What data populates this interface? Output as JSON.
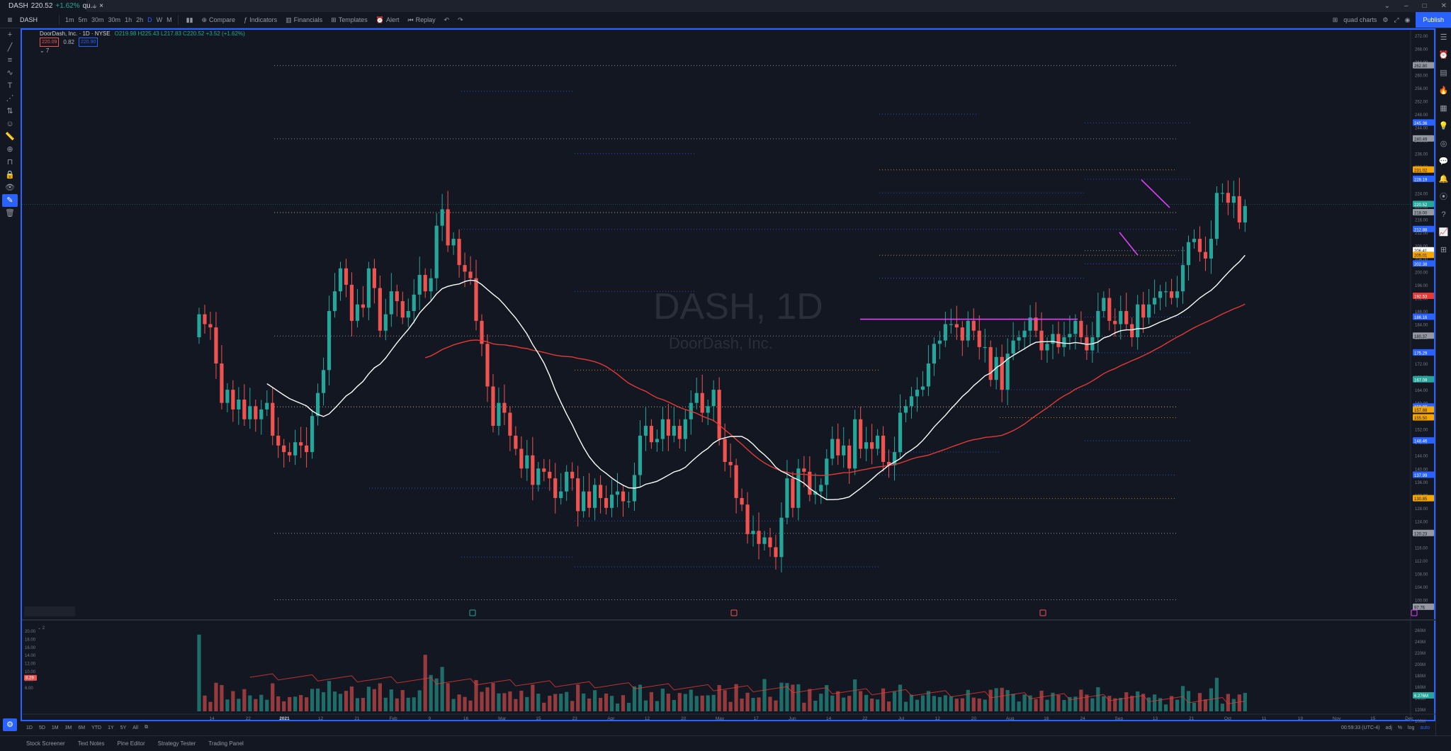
{
  "window": {
    "tab_label": "DASH",
    "tab_price": "220.52",
    "tab_change": "+1.62%",
    "tab_extra": "qu...",
    "new_tab": "+"
  },
  "toolbar": {
    "symbol": "DASH",
    "timeframes": [
      "1m",
      "5m",
      "30m",
      "30m",
      "1h",
      "2h",
      "D",
      "W",
      "M"
    ],
    "active_timeframe": "D",
    "compare": "Compare",
    "indicators": "Indicators",
    "financials": "Financials",
    "templates": "Templates",
    "alert": "Alert",
    "replay": "Replay",
    "layout_name": "quad charts",
    "publish": "Publish"
  },
  "legend": {
    "title": "DoorDash, Inc. · 1D · NYSE",
    "ohlc": "O219.98 H225.43 L217.83 C220.52 +3.52 (+1.62%)",
    "ma1": "220.09",
    "ma1_mid": "0.82",
    "ma2": "220.90",
    "collapse": "⌄ 7"
  },
  "watermark": {
    "symbol": "DASH, 1D",
    "name": "DoorDash, Inc."
  },
  "volume_legend": "⌄ 2",
  "bottom": {
    "ranges": [
      "1D",
      "5D",
      "1M",
      "3M",
      "6M",
      "YTD",
      "1Y",
      "5Y",
      "All"
    ],
    "time": "00:59:33 (UTC-4)",
    "adj": "adj",
    "pct": "%",
    "log": "log",
    "auto": "auto"
  },
  "panels": [
    "Stock Screener",
    "Text Notes",
    "Pine Editor",
    "Strategy Tester",
    "Trading Panel"
  ],
  "colors": {
    "up": "#26a69a",
    "down": "#ef5350",
    "ma_fast": "#ffffff",
    "ma_slow": "#e53935",
    "trend": "#e040fb",
    "accent": "#2962ff"
  },
  "chart_data": {
    "type": "candlestick",
    "price_axis": {
      "min": 96,
      "max": 272,
      "ticks": [
        272,
        268,
        264,
        260,
        256,
        252,
        248,
        244,
        240,
        236,
        232,
        228,
        224,
        220,
        216,
        212,
        208,
        204,
        200,
        196,
        192,
        188,
        184,
        180,
        176,
        172,
        168,
        164,
        160,
        156,
        152,
        148,
        144,
        140,
        136,
        132,
        128,
        124,
        120,
        116,
        112,
        108,
        104,
        100
      ]
    },
    "x_labels": [
      "14",
      "22",
      "2021",
      "12",
      "21",
      "Feb",
      "9",
      "16",
      "Mar",
      "15",
      "23",
      "Apr",
      "12",
      "20",
      "May",
      "17",
      "Jun",
      "14",
      "22",
      "Jul",
      "12",
      "20",
      "Aug",
      "16",
      "24",
      "Sep",
      "13",
      "21",
      "Oct",
      "11",
      "19",
      "Nov",
      "15",
      "Dec"
    ],
    "price_labels": [
      {
        "v": 262.8,
        "text": "262.80",
        "c": "#9598a1"
      },
      {
        "v": 245.36,
        "text": "245.36",
        "c": "#2962ff"
      },
      {
        "v": 240.49,
        "text": "240.49",
        "c": "#9598a1"
      },
      {
        "v": 231.02,
        "text": "231.02",
        "c": "#f7a600"
      },
      {
        "v": 228.19,
        "text": "228.19",
        "c": "#2962ff"
      },
      {
        "v": 220.52,
        "text": "220.52",
        "c": "#26a69a"
      },
      {
        "v": 218.0,
        "text": "218.00",
        "c": "#9598a1"
      },
      {
        "v": 212.88,
        "text": "212.88",
        "c": "#2962ff"
      },
      {
        "v": 206.41,
        "text": "206.41",
        "c": "#ffffff"
      },
      {
        "v": 205.01,
        "text": "205.01",
        "c": "#f7a600"
      },
      {
        "v": 202.38,
        "text": "202.38",
        "c": "#2962ff"
      },
      {
        "v": 192.53,
        "text": "192.53",
        "c": "#e53935"
      },
      {
        "v": 186.16,
        "text": "186.16",
        "c": "#2962ff"
      },
      {
        "v": 180.37,
        "text": "180.37",
        "c": "#9598a1"
      },
      {
        "v": 175.29,
        "text": "175.29",
        "c": "#2962ff"
      },
      {
        "v": 167.09,
        "text": "167.09",
        "c": "#26a69a"
      },
      {
        "v": 158.8,
        "text": "158.80",
        "c": "#2962ff"
      },
      {
        "v": 157.88,
        "text": "157.88",
        "c": "#f7a600"
      },
      {
        "v": 155.5,
        "text": "155.50",
        "c": "#f7a600"
      },
      {
        "v": 148.46,
        "text": "148.46",
        "c": "#2962ff"
      },
      {
        "v": 137.99,
        "text": "137.99",
        "c": "#2962ff"
      },
      {
        "v": 130.85,
        "text": "130.85",
        "c": "#f7a600"
      },
      {
        "v": 120.23,
        "text": "120.23",
        "c": "#9598a1"
      },
      {
        "v": 97.76,
        "text": "97.76",
        "c": "#9598a1"
      }
    ],
    "vol_axis": [
      "20.00",
      "18.00",
      "16.00",
      "14.00",
      "12.00",
      "10.00",
      "8.00",
      "6.00"
    ],
    "vol_axis_right": [
      "260M",
      "240M",
      "220M",
      "200M",
      "180M",
      "160M",
      "140M",
      "120M",
      "100M"
    ],
    "vol_label_left": "8.29",
    "vol_label_right": "6.276M",
    "closes": [
      187,
      184,
      183,
      172,
      160,
      164,
      158,
      161,
      155,
      159,
      155,
      158,
      160,
      150,
      147,
      145,
      144,
      148,
      147,
      145,
      156,
      163,
      170,
      188,
      194,
      201,
      196,
      185,
      190,
      189,
      201,
      195,
      182,
      187,
      194,
      191,
      186,
      188,
      193,
      199,
      194,
      198,
      214,
      219,
      208,
      210,
      202,
      200,
      198,
      185,
      178,
      165,
      153,
      160,
      157,
      150,
      146,
      140,
      144,
      135,
      140,
      139,
      137,
      131,
      133,
      139,
      137,
      127,
      133,
      128,
      135,
      131,
      128,
      132,
      133,
      130,
      130,
      138,
      150,
      153,
      148,
      149,
      155,
      150,
      153,
      149,
      155,
      160,
      163,
      157,
      159,
      164,
      149,
      142,
      141,
      131,
      129,
      120,
      121,
      117,
      119,
      116,
      113,
      125,
      137,
      128,
      140,
      139,
      132,
      133,
      135,
      143,
      149,
      144,
      147,
      140,
      155,
      146,
      148,
      146,
      150,
      142,
      141,
      145,
      157,
      159,
      162,
      164,
      165,
      172,
      178,
      179,
      184,
      184,
      183,
      179,
      185,
      182,
      177,
      177,
      167,
      174,
      164,
      175,
      179,
      180,
      182,
      186,
      182,
      176,
      178,
      181,
      177,
      180,
      181,
      185,
      180,
      176,
      180,
      188,
      192,
      185,
      184,
      188,
      184,
      180,
      190,
      186,
      190,
      192,
      194,
      194,
      192,
      194,
      202,
      209,
      210,
      206,
      204,
      210,
      224,
      224,
      221,
      223,
      215,
      220
    ]
  }
}
